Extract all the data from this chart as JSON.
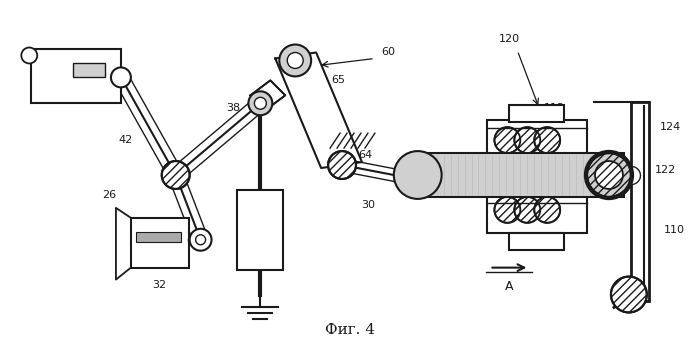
{
  "title": "Фиг. 4",
  "bg_color": "#ffffff",
  "line_color": "#1a1a1a",
  "gray_light": "#d0d0d0",
  "gray_med": "#aaaaaa",
  "figsize": [
    7.0,
    3.5
  ],
  "dpi": 100
}
